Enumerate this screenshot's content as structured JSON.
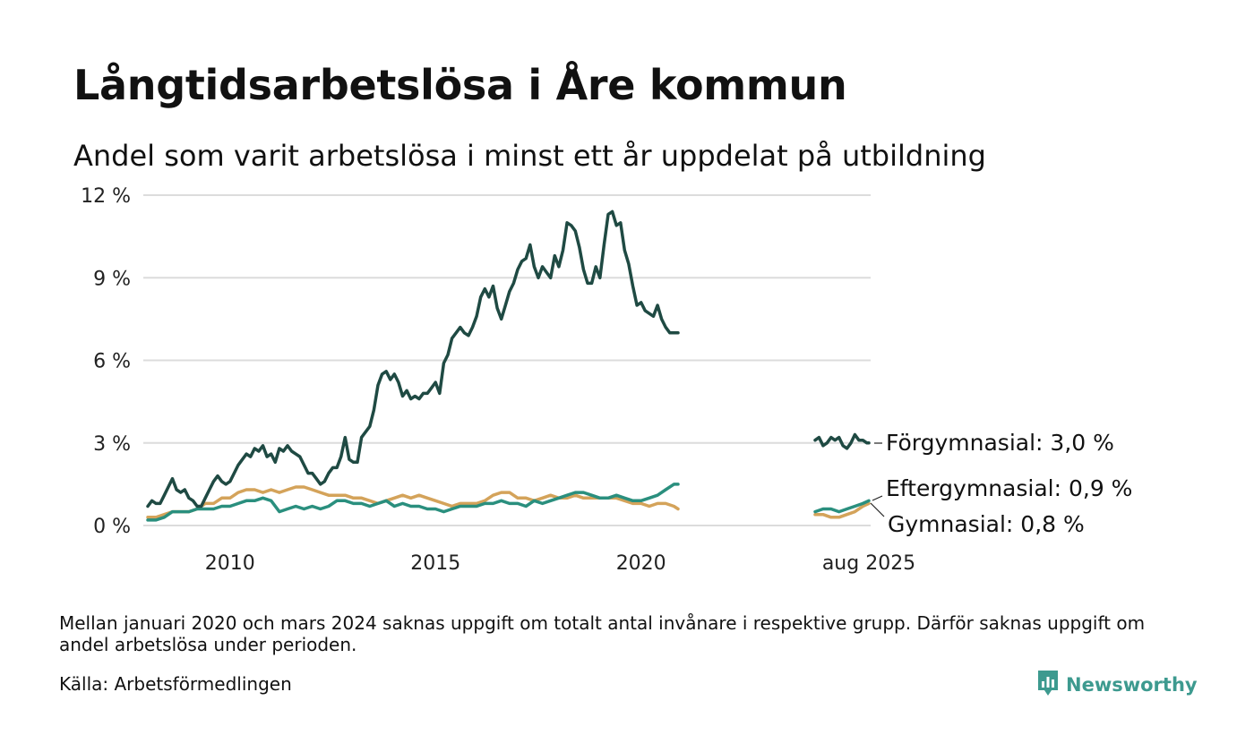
{
  "title": "Långtidsarbetslösa i Åre kommun",
  "subtitle": "Andel som varit arbetslösa i minst ett år uppdelat på utbildning",
  "note": "Mellan januari 2020 och mars 2024 saknas uppgift om totalt antal invånare i respektive grupp. Därför saknas uppgift om andel arbetslösa under perioden.",
  "source": "Källa: Arbetsförmedlingen",
  "brand": {
    "name": "Newsworthy",
    "icon": "newsworthy-logo-icon",
    "color": "#3d9a8f"
  },
  "chart_data": {
    "type": "line",
    "y_ticks": [
      {
        "value": 0,
        "label": "0 %"
      },
      {
        "value": 3,
        "label": "3 %"
      },
      {
        "value": 6,
        "label": "6 %"
      },
      {
        "value": 9,
        "label": "9 %"
      },
      {
        "value": 12,
        "label": "12 %"
      }
    ],
    "ylim": [
      0,
      12
    ],
    "grid": true,
    "x_ticks": [
      {
        "value": 2010,
        "label": "2010"
      },
      {
        "value": 2015,
        "label": "2015"
      },
      {
        "value": 2020,
        "label": "2020"
      }
    ],
    "end_label": "aug 2025",
    "series": [
      {
        "name": "Förgymnasial",
        "label": "Förgymnasial: 3,0 %",
        "color": "#1f4a43",
        "segments": [
          {
            "x": [
              2008.0,
              2008.1,
              2008.2,
              2008.3,
              2008.4,
              2008.5,
              2008.6,
              2008.7,
              2008.8,
              2008.9,
              2009.0,
              2009.1,
              2009.2,
              2009.3,
              2009.4,
              2009.5,
              2009.6,
              2009.7,
              2009.8,
              2009.9,
              2010.0,
              2010.1,
              2010.2,
              2010.3,
              2010.4,
              2010.5,
              2010.6,
              2010.7,
              2010.8,
              2010.9,
              2011.0,
              2011.1,
              2011.2,
              2011.3,
              2011.4,
              2011.5,
              2011.6,
              2011.7,
              2011.8,
              2011.9,
              2012.0,
              2012.1,
              2012.2,
              2012.3,
              2012.4,
              2012.5,
              2012.6,
              2012.7,
              2012.8,
              2012.9,
              2013.0,
              2013.1,
              2013.2,
              2013.3,
              2013.4,
              2013.5,
              2013.6,
              2013.7,
              2013.8,
              2013.9,
              2014.0,
              2014.1,
              2014.2,
              2014.3,
              2014.4,
              2014.5,
              2014.6,
              2014.7,
              2014.8,
              2014.9,
              2015.0,
              2015.1,
              2015.2,
              2015.3,
              2015.4,
              2015.5,
              2015.6,
              2015.7,
              2015.8,
              2015.9,
              2016.0,
              2016.1,
              2016.2,
              2016.3,
              2016.4,
              2016.5,
              2016.6,
              2016.7,
              2016.8,
              2016.9,
              2017.0,
              2017.1,
              2017.2,
              2017.3,
              2017.4,
              2017.5,
              2017.6,
              2017.7,
              2017.8,
              2017.9,
              2018.0,
              2018.1,
              2018.2,
              2018.3,
              2018.4,
              2018.5,
              2018.6,
              2018.7,
              2018.8,
              2018.9,
              2019.0,
              2019.1,
              2019.2,
              2019.3,
              2019.4,
              2019.5,
              2019.6,
              2019.7,
              2019.8,
              2019.9,
              2020.0,
              2020.1,
              2020.2,
              2020.3,
              2020.4,
              2020.5,
              2020.6,
              2020.7,
              2020.8,
              2020.9
            ],
            "y": [
              0.7,
              0.9,
              0.8,
              0.8,
              1.1,
              1.4,
              1.7,
              1.3,
              1.2,
              1.3,
              1.0,
              0.9,
              0.7,
              0.7,
              1.0,
              1.3,
              1.6,
              1.8,
              1.6,
              1.5,
              1.6,
              1.9,
              2.2,
              2.4,
              2.6,
              2.5,
              2.8,
              2.7,
              2.9,
              2.5,
              2.6,
              2.3,
              2.8,
              2.7,
              2.9,
              2.7,
              2.6,
              2.5,
              2.2,
              1.9,
              1.9,
              1.7,
              1.5,
              1.6,
              1.9,
              2.1,
              2.1,
              2.5,
              3.2,
              2.4,
              2.3,
              2.3,
              3.2,
              3.4,
              3.6,
              4.2,
              5.1,
              5.5,
              5.6,
              5.3,
              5.5,
              5.2,
              4.7,
              4.9,
              4.6,
              4.7,
              4.6,
              4.8,
              4.8,
              5.0,
              5.2,
              4.8,
              5.9,
              6.2,
              6.8,
              7.0,
              7.2,
              7.0,
              6.9,
              7.2,
              7.6,
              8.3,
              8.6,
              8.3,
              8.7,
              7.9,
              7.5,
              8.0,
              8.5,
              8.8,
              9.3,
              9.6,
              9.7,
              10.2,
              9.4,
              9.0,
              9.4,
              9.2,
              9.0,
              9.8,
              9.4,
              10.0,
              11.0,
              10.9,
              10.7,
              10.1,
              9.3,
              8.8,
              8.8,
              9.4,
              9.0,
              10.2,
              11.3,
              11.4,
              10.9,
              11.0,
              10.0,
              9.5,
              8.7,
              8.0,
              8.1,
              7.8,
              7.7,
              7.6,
              8.0,
              7.5,
              7.2,
              7.0,
              7.0,
              7.0
            ]
          },
          {
            "x": [
              2024.25,
              2024.35,
              2024.45,
              2024.55,
              2024.65,
              2024.75,
              2024.85,
              2024.95,
              2025.05,
              2025.15,
              2025.25,
              2025.35,
              2025.45,
              2025.55,
              2025.6
            ],
            "y": [
              3.1,
              3.2,
              2.9,
              3.0,
              3.2,
              3.1,
              3.2,
              2.9,
              2.8,
              3.0,
              3.3,
              3.1,
              3.1,
              3.0,
              3.0
            ]
          }
        ]
      },
      {
        "name": "Eftergymnasial",
        "label": "Eftergymnasial: 0,9 %",
        "color": "#2a8f7e",
        "segments": [
          {
            "x": [
              2008.0,
              2008.2,
              2008.4,
              2008.6,
              2008.8,
              2009.0,
              2009.2,
              2009.4,
              2009.6,
              2009.8,
              2010.0,
              2010.2,
              2010.4,
              2010.6,
              2010.8,
              2011.0,
              2011.2,
              2011.4,
              2011.6,
              2011.8,
              2012.0,
              2012.2,
              2012.4,
              2012.6,
              2012.8,
              2013.0,
              2013.2,
              2013.4,
              2013.6,
              2013.8,
              2014.0,
              2014.2,
              2014.4,
              2014.6,
              2014.8,
              2015.0,
              2015.2,
              2015.4,
              2015.6,
              2015.8,
              2016.0,
              2016.2,
              2016.4,
              2016.6,
              2016.8,
              2017.0,
              2017.2,
              2017.4,
              2017.6,
              2017.8,
              2018.0,
              2018.2,
              2018.4,
              2018.6,
              2018.8,
              2019.0,
              2019.2,
              2019.4,
              2019.6,
              2019.8,
              2020.0,
              2020.2,
              2020.4,
              2020.6,
              2020.8,
              2020.9
            ],
            "y": [
              0.2,
              0.2,
              0.3,
              0.5,
              0.5,
              0.5,
              0.6,
              0.6,
              0.6,
              0.7,
              0.7,
              0.8,
              0.9,
              0.9,
              1.0,
              0.9,
              0.5,
              0.6,
              0.7,
              0.6,
              0.7,
              0.6,
              0.7,
              0.9,
              0.9,
              0.8,
              0.8,
              0.7,
              0.8,
              0.9,
              0.7,
              0.8,
              0.7,
              0.7,
              0.6,
              0.6,
              0.5,
              0.6,
              0.7,
              0.7,
              0.7,
              0.8,
              0.8,
              0.9,
              0.8,
              0.8,
              0.7,
              0.9,
              0.8,
              0.9,
              1.0,
              1.1,
              1.2,
              1.2,
              1.1,
              1.0,
              1.0,
              1.1,
              1.0,
              0.9,
              0.9,
              1.0,
              1.1,
              1.3,
              1.5,
              1.5
            ]
          },
          {
            "x": [
              2024.25,
              2024.45,
              2024.65,
              2024.85,
              2025.05,
              2025.25,
              2025.45,
              2025.6
            ],
            "y": [
              0.5,
              0.6,
              0.6,
              0.5,
              0.6,
              0.7,
              0.8,
              0.9
            ]
          }
        ]
      },
      {
        "name": "Gymnasial",
        "label": "Gymnasial: 0,8 %",
        "color": "#d4a35a",
        "segments": [
          {
            "x": [
              2008.0,
              2008.2,
              2008.4,
              2008.6,
              2008.8,
              2009.0,
              2009.2,
              2009.4,
              2009.6,
              2009.8,
              2010.0,
              2010.2,
              2010.4,
              2010.6,
              2010.8,
              2011.0,
              2011.2,
              2011.4,
              2011.6,
              2011.8,
              2012.0,
              2012.2,
              2012.4,
              2012.6,
              2012.8,
              2013.0,
              2013.2,
              2013.4,
              2013.6,
              2013.8,
              2014.0,
              2014.2,
              2014.4,
              2014.6,
              2014.8,
              2015.0,
              2015.2,
              2015.4,
              2015.6,
              2015.8,
              2016.0,
              2016.2,
              2016.4,
              2016.6,
              2016.8,
              2017.0,
              2017.2,
              2017.4,
              2017.6,
              2017.8,
              2018.0,
              2018.2,
              2018.4,
              2018.6,
              2018.8,
              2019.0,
              2019.2,
              2019.4,
              2019.6,
              2019.8,
              2020.0,
              2020.2,
              2020.4,
              2020.6,
              2020.8,
              2020.9
            ],
            "y": [
              0.3,
              0.3,
              0.4,
              0.5,
              0.5,
              0.5,
              0.6,
              0.8,
              0.8,
              1.0,
              1.0,
              1.2,
              1.3,
              1.3,
              1.2,
              1.3,
              1.2,
              1.3,
              1.4,
              1.4,
              1.3,
              1.2,
              1.1,
              1.1,
              1.1,
              1.0,
              1.0,
              0.9,
              0.8,
              0.9,
              1.0,
              1.1,
              1.0,
              1.1,
              1.0,
              0.9,
              0.8,
              0.7,
              0.8,
              0.8,
              0.8,
              0.9,
              1.1,
              1.2,
              1.2,
              1.0,
              1.0,
              0.9,
              1.0,
              1.1,
              1.0,
              1.0,
              1.1,
              1.0,
              1.0,
              1.0,
              1.0,
              1.0,
              0.9,
              0.8,
              0.8,
              0.7,
              0.8,
              0.8,
              0.7,
              0.6
            ]
          },
          {
            "x": [
              2024.25,
              2024.45,
              2024.65,
              2024.85,
              2025.05,
              2025.25,
              2025.45,
              2025.6
            ],
            "y": [
              0.4,
              0.4,
              0.3,
              0.3,
              0.4,
              0.5,
              0.7,
              0.8
            ]
          }
        ]
      }
    ]
  }
}
